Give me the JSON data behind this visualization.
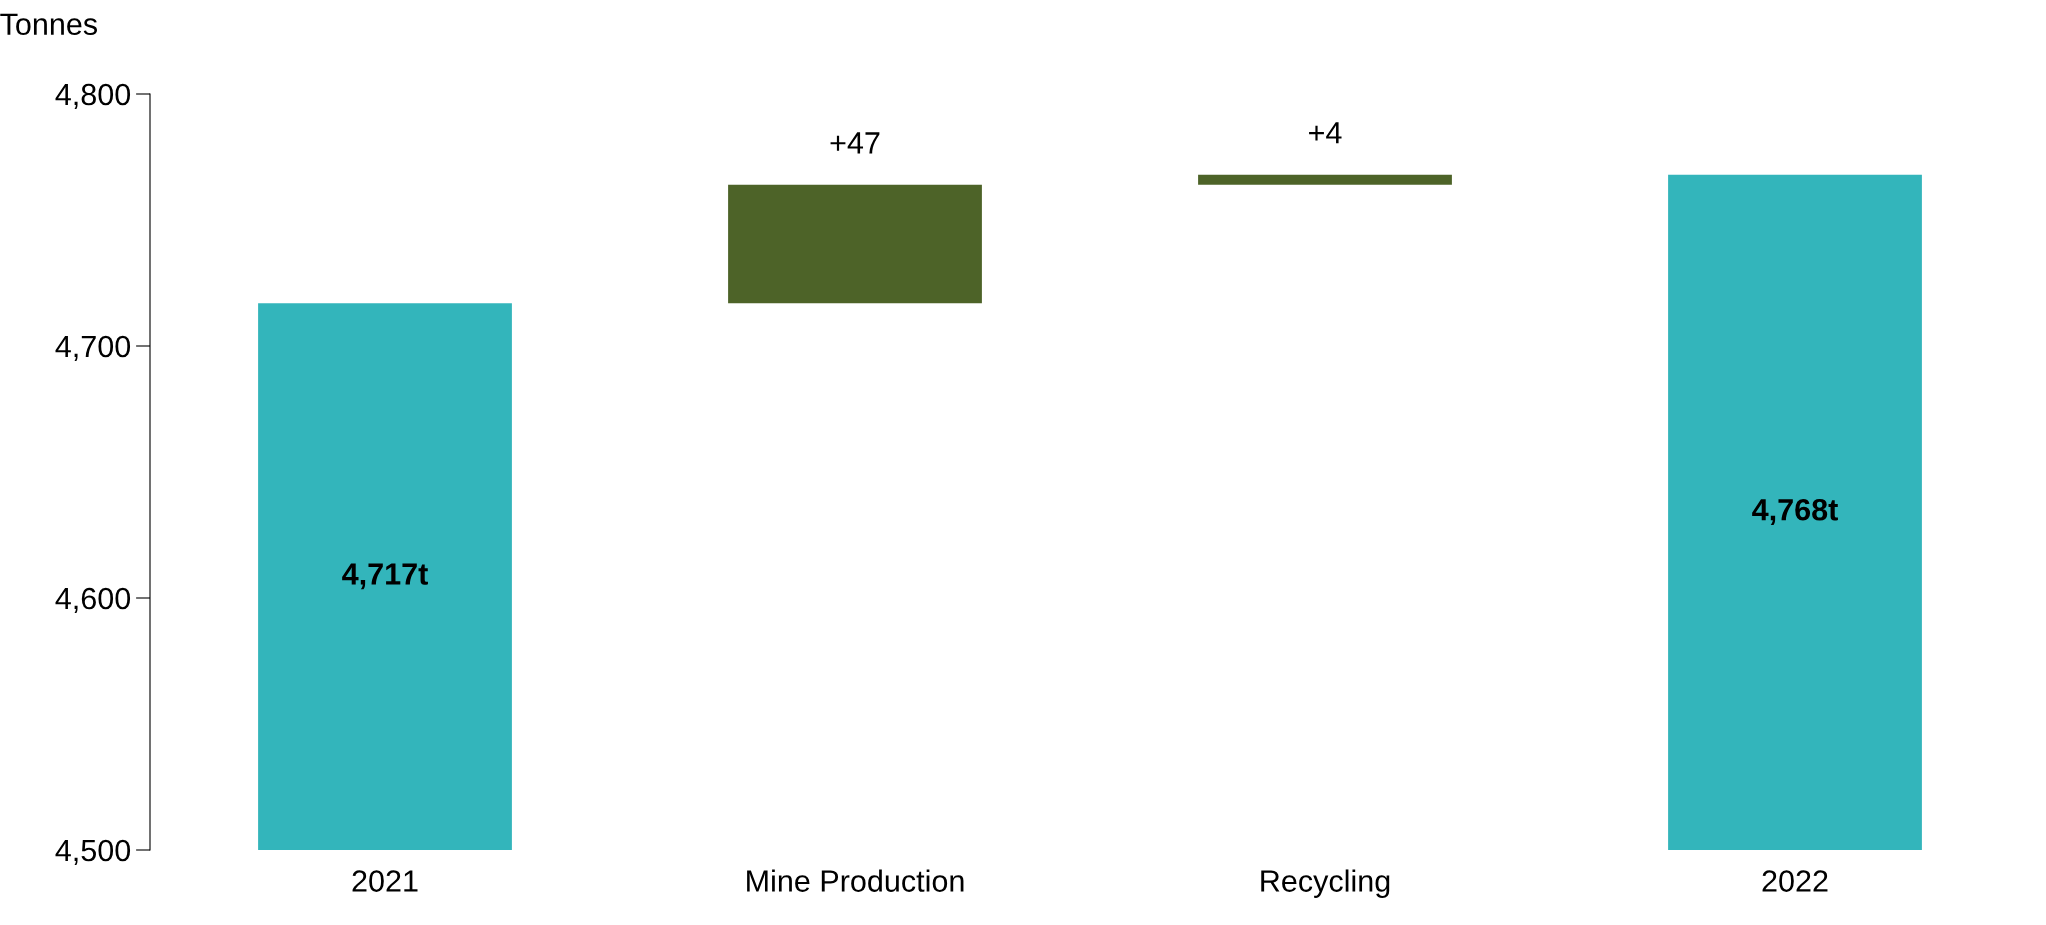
{
  "chart_data": {
    "type": "bar",
    "ylabel": "Tonnes",
    "categories": [
      "2021",
      "Mine Production",
      "Recycling",
      "2022"
    ],
    "base": [
      4500,
      4717,
      4764,
      4500
    ],
    "values": [
      217,
      47,
      4,
      268
    ],
    "colors": [
      "#33b5bb",
      "#4d6328",
      "#4d6328",
      "#33b5bb"
    ],
    "value_labels": [
      "4,717t",
      "+47",
      "+4",
      "4,768t"
    ],
    "ylim": [
      4500,
      4800
    ],
    "yticks": [
      {
        "value": 4500,
        "label": "4,500"
      },
      {
        "value": 4600,
        "label": "4,600"
      },
      {
        "value": 4700,
        "label": "4,700"
      },
      {
        "value": 4800,
        "label": "4,800"
      }
    ],
    "grid": false,
    "legend": false
  }
}
